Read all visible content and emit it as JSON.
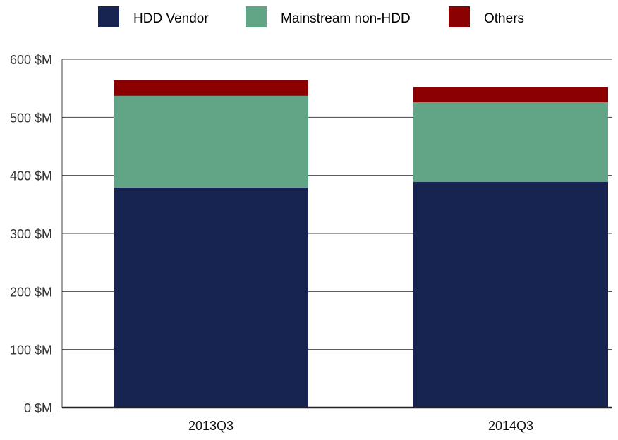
{
  "chart_data": {
    "type": "bar",
    "stacked": true,
    "categories": [
      "2013Q3",
      "2014Q3"
    ],
    "series": [
      {
        "name": "HDD Vendor",
        "values": [
          379,
          389
        ],
        "color": "#172350"
      },
      {
        "name": "Mainstream non-HDD",
        "values": [
          158,
          137
        ],
        "color": "#62a486"
      },
      {
        "name": "Others",
        "values": [
          27,
          26
        ],
        "color": "#8b0000"
      }
    ],
    "ylim": [
      0,
      600
    ],
    "yticks": [
      0,
      100,
      200,
      300,
      400,
      500,
      600
    ],
    "ytick_labels": [
      "0 $M",
      "100 $M",
      "200 $M",
      "300 $M",
      "400 $M",
      "500 $M",
      "600 $M"
    ],
    "grid": true,
    "legend_position": "top"
  }
}
